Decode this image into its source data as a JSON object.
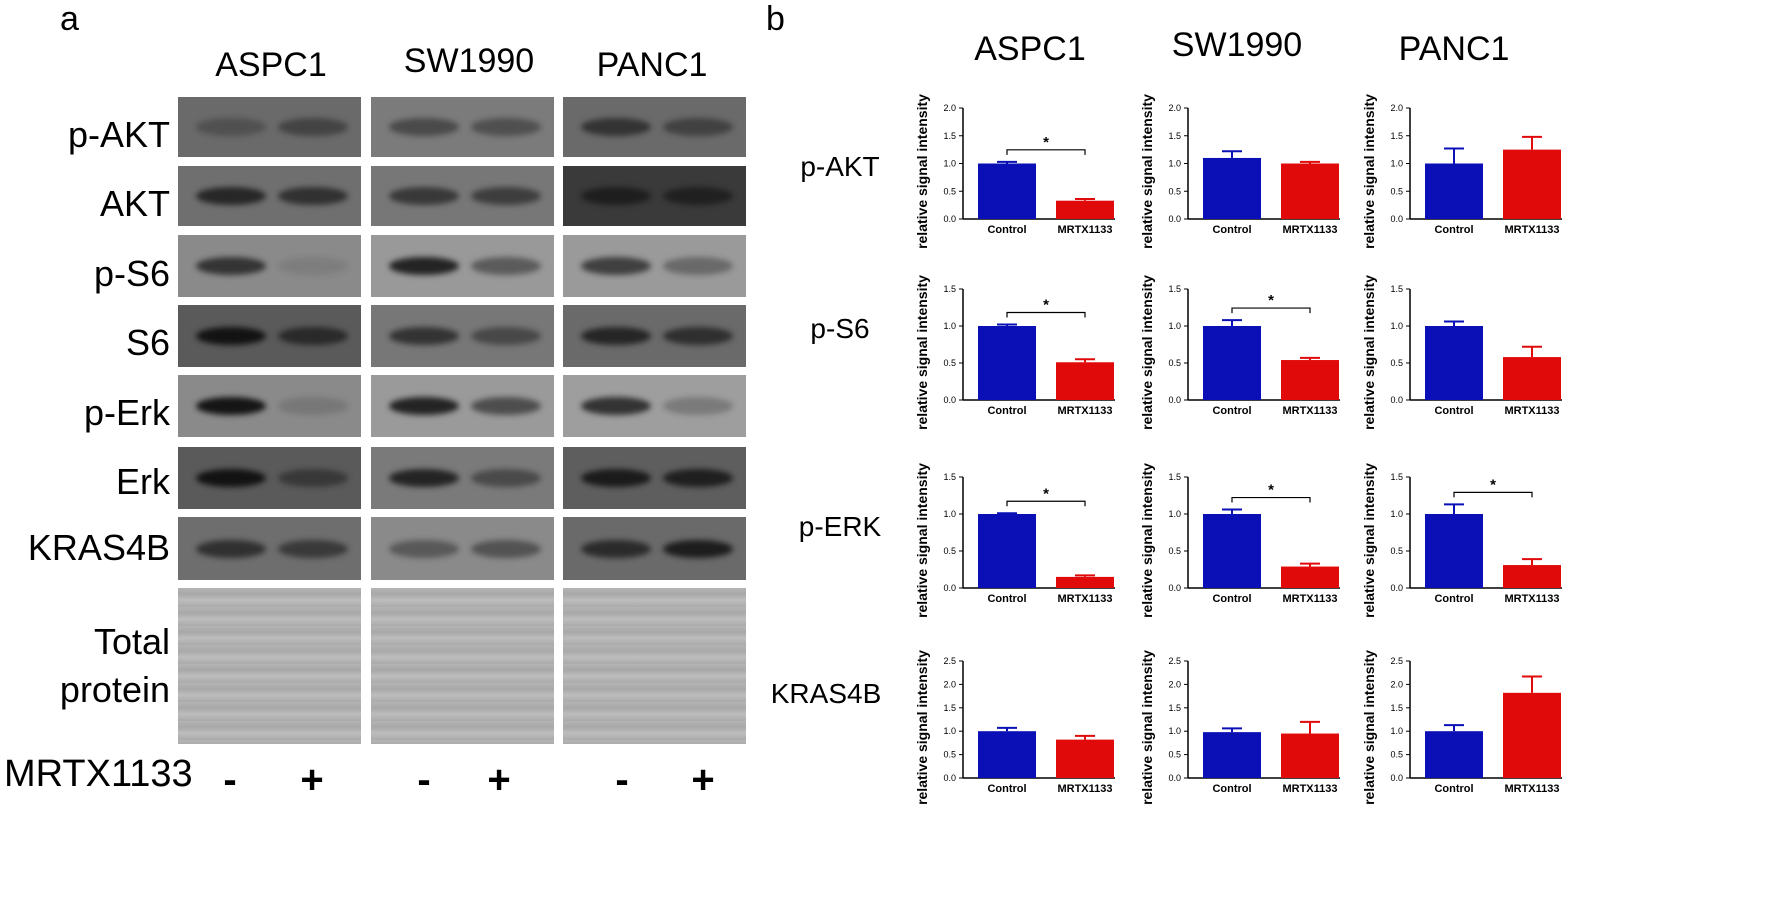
{
  "panel_a": {
    "letter": "a",
    "cell_lines": [
      "ASPC1",
      "SW1990",
      "PANC1"
    ],
    "blot_labels": [
      "p-AKT",
      "AKT",
      "p-S6",
      "S6",
      "p-Erk",
      "Erk",
      "KRAS4B"
    ],
    "total_protein_label": [
      "Total",
      "protein"
    ],
    "treatment_label": "MRTX1133",
    "treatment_signs": [
      "-",
      "+",
      "-",
      "+",
      "-",
      "+"
    ]
  },
  "panel_b": {
    "letter": "b",
    "column_titles": [
      "ASPC1",
      "SW1990",
      "PANC1"
    ],
    "row_labels": [
      "p-AKT",
      "p-S6",
      "p-ERK",
      "KRAS4B"
    ],
    "colors": {
      "control": "#0a10b5",
      "treated": "#e00a0a"
    }
  },
  "chart_data": [
    {
      "type": "bar",
      "row": "p-AKT",
      "column": "ASPC1",
      "categories": [
        "Control",
        "MRTX1133"
      ],
      "values": [
        1.0,
        0.33
      ],
      "errors": [
        0.03,
        0.03
      ],
      "ylabel": "relative signal intensity",
      "ylim": [
        0,
        2.0
      ],
      "yticks": [
        "0.0",
        "0.5",
        "1.0",
        "1.5",
        "2.0"
      ],
      "significance": "*"
    },
    {
      "type": "bar",
      "row": "p-AKT",
      "column": "SW1990",
      "categories": [
        "Control",
        "MRTX1133"
      ],
      "values": [
        1.1,
        1.0
      ],
      "errors": [
        0.12,
        0.03
      ],
      "ylabel": "relative signal intensity",
      "ylim": [
        0,
        2.0
      ],
      "yticks": [
        "0.0",
        "0.5",
        "1.0",
        "1.5",
        "2.0"
      ],
      "significance": ""
    },
    {
      "type": "bar",
      "row": "p-AKT",
      "column": "PANC1",
      "categories": [
        "Control",
        "MRTX1133"
      ],
      "values": [
        1.0,
        1.25
      ],
      "errors": [
        0.27,
        0.23
      ],
      "ylabel": "relative signal intensity",
      "ylim": [
        0,
        2.0
      ],
      "yticks": [
        "0.0",
        "0.5",
        "1.0",
        "1.5",
        "2.0"
      ],
      "significance": ""
    },
    {
      "type": "bar",
      "row": "p-S6",
      "column": "ASPC1",
      "categories": [
        "Control",
        "MRTX1133"
      ],
      "values": [
        1.0,
        0.51
      ],
      "errors": [
        0.02,
        0.04
      ],
      "ylabel": "relative signal intensity",
      "ylim": [
        0,
        1.5
      ],
      "yticks": [
        "0.0",
        "0.5",
        "1.0",
        "1.5"
      ],
      "significance": "*"
    },
    {
      "type": "bar",
      "row": "p-S6",
      "column": "SW1990",
      "categories": [
        "Control",
        "MRTX1133"
      ],
      "values": [
        1.0,
        0.54
      ],
      "errors": [
        0.08,
        0.03
      ],
      "ylabel": "relative signal intensity",
      "ylim": [
        0,
        1.5
      ],
      "yticks": [
        "0.0",
        "0.5",
        "1.0",
        "1.5"
      ],
      "significance": "*"
    },
    {
      "type": "bar",
      "row": "p-S6",
      "column": "PANC1",
      "categories": [
        "Control",
        "MRTX1133"
      ],
      "values": [
        1.0,
        0.58
      ],
      "errors": [
        0.06,
        0.14
      ],
      "ylabel": "relative signal intensity",
      "ylim": [
        0,
        1.5
      ],
      "yticks": [
        "0.0",
        "0.5",
        "1.0",
        "1.5"
      ],
      "significance": ""
    },
    {
      "type": "bar",
      "row": "p-ERK",
      "column": "ASPC1",
      "categories": [
        "Control",
        "MRTX1133"
      ],
      "values": [
        1.0,
        0.15
      ],
      "errors": [
        0.01,
        0.02
      ],
      "ylabel": "relative signal intensity",
      "ylim": [
        0,
        1.5
      ],
      "yticks": [
        "0.0",
        "0.5",
        "1.0",
        "1.5"
      ],
      "significance": "*"
    },
    {
      "type": "bar",
      "row": "p-ERK",
      "column": "SW1990",
      "categories": [
        "Control",
        "MRTX1133"
      ],
      "values": [
        1.0,
        0.29
      ],
      "errors": [
        0.06,
        0.04
      ],
      "ylabel": "relative signal intensity",
      "ylim": [
        0,
        1.5
      ],
      "yticks": [
        "0.0",
        "0.5",
        "1.0",
        "1.5"
      ],
      "significance": "*"
    },
    {
      "type": "bar",
      "row": "p-ERK",
      "column": "PANC1",
      "categories": [
        "Control",
        "MRTX1133"
      ],
      "values": [
        1.0,
        0.31
      ],
      "errors": [
        0.13,
        0.08
      ],
      "ylabel": "relative signal intensity",
      "ylim": [
        0,
        1.5
      ],
      "yticks": [
        "0.0",
        "0.5",
        "1.0",
        "1.5"
      ],
      "significance": "*"
    },
    {
      "type": "bar",
      "row": "KRAS4B",
      "column": "ASPC1",
      "categories": [
        "Control",
        "MRTX1133"
      ],
      "values": [
        1.0,
        0.82
      ],
      "errors": [
        0.07,
        0.08
      ],
      "ylabel": "relative signal intensity",
      "ylim": [
        0,
        2.5
      ],
      "yticks": [
        "0.0",
        "0.5",
        "1.0",
        "1.5",
        "2.0",
        "2.5"
      ],
      "significance": ""
    },
    {
      "type": "bar",
      "row": "KRAS4B",
      "column": "SW1990",
      "categories": [
        "Control",
        "MRTX1133"
      ],
      "values": [
        0.98,
        0.95
      ],
      "errors": [
        0.08,
        0.25
      ],
      "ylabel": "relative signal intensity",
      "ylim": [
        0,
        2.5
      ],
      "yticks": [
        "0.0",
        "0.5",
        "1.0",
        "1.5",
        "2.0",
        "2.5"
      ],
      "significance": ""
    },
    {
      "type": "bar",
      "row": "KRAS4B",
      "column": "PANC1",
      "categories": [
        "Control",
        "MRTX1133"
      ],
      "values": [
        1.0,
        1.82
      ],
      "errors": [
        0.13,
        0.35
      ],
      "ylabel": "relative signal intensity",
      "ylim": [
        0,
        2.5
      ],
      "yticks": [
        "0.0",
        "0.5",
        "1.0",
        "1.5",
        "2.0",
        "2.5"
      ],
      "significance": ""
    }
  ]
}
